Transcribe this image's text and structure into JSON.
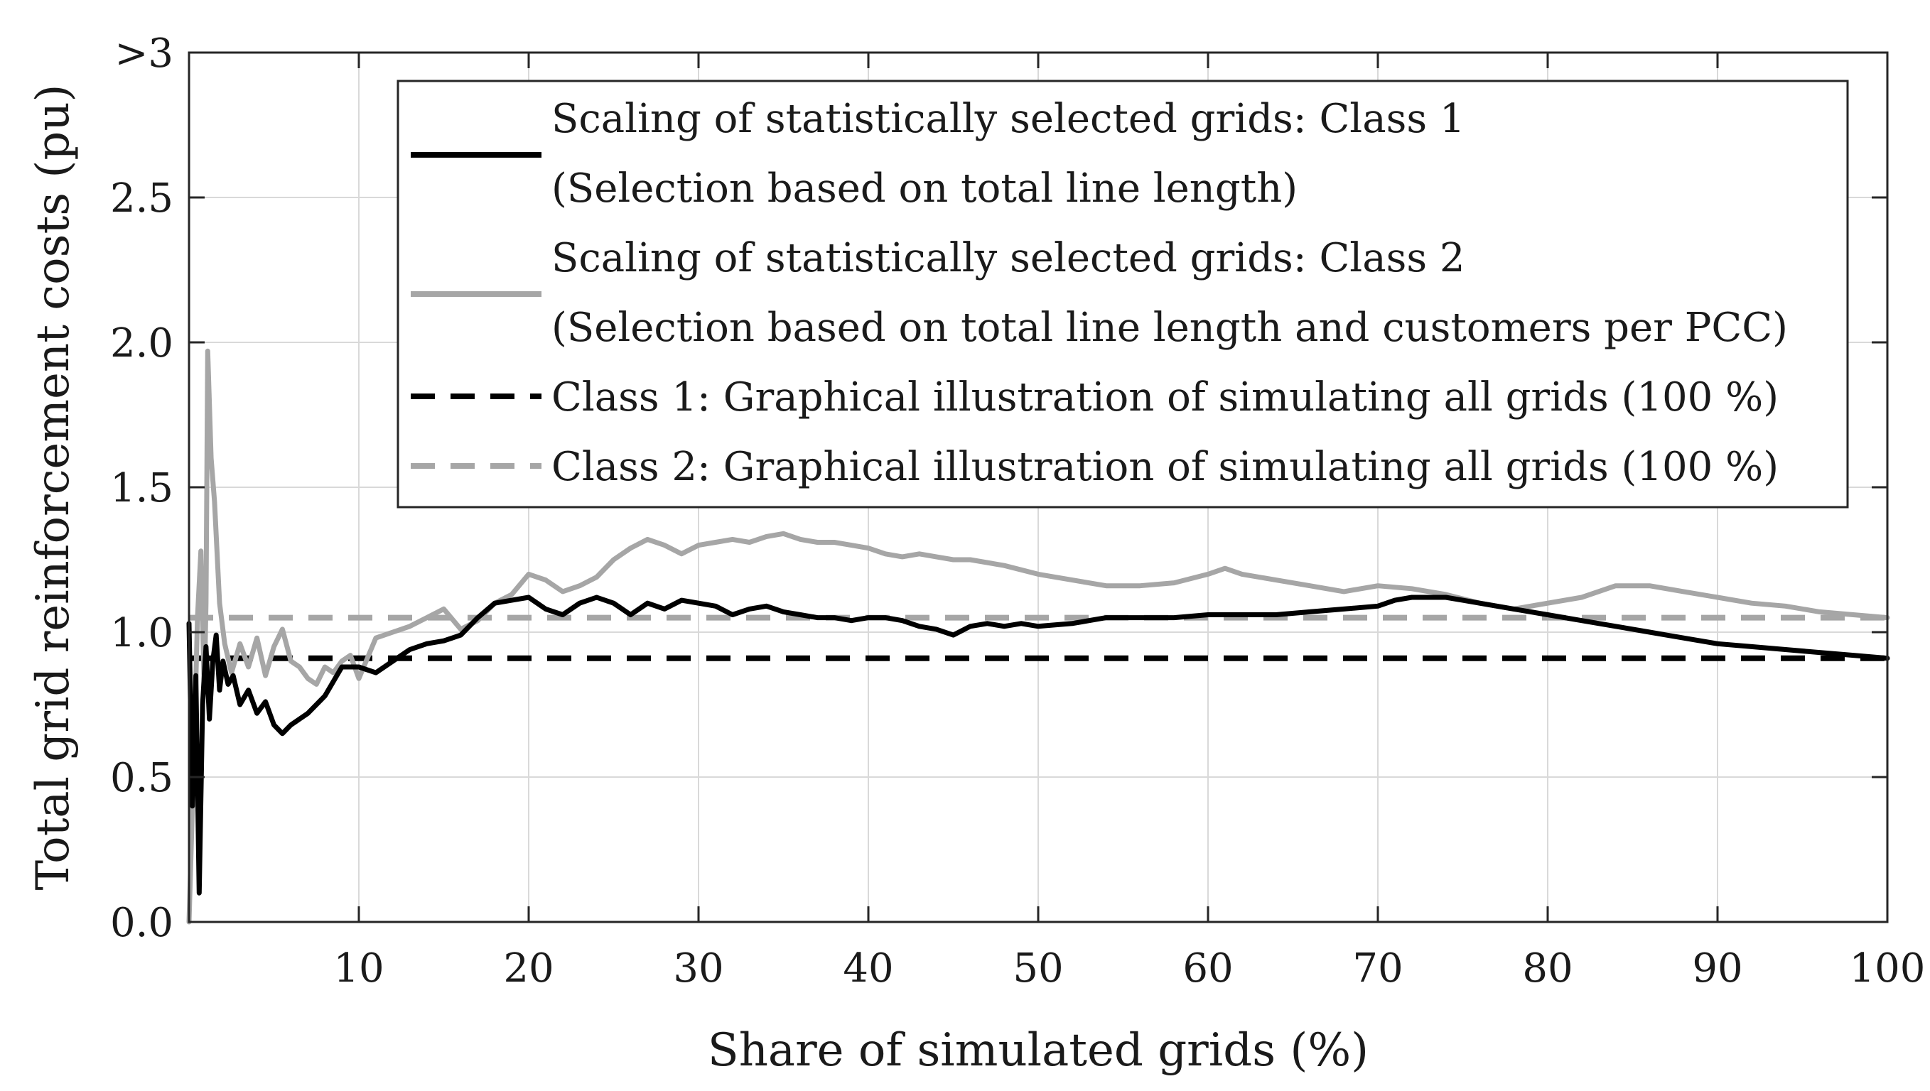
{
  "chart_data": {
    "type": "line",
    "xlabel": "Share of simulated grids (%)",
    "ylabel": "Total grid reinforcement costs (pu)",
    "xlim": [
      0,
      100
    ],
    "ylim": [
      0,
      3
    ],
    "x_ticks": [
      10,
      20,
      30,
      40,
      50,
      60,
      70,
      80,
      90,
      100
    ],
    "x_tick_labels": [
      "10",
      "20",
      "30",
      "40",
      "50",
      "60",
      "70",
      "80",
      "90",
      "100"
    ],
    "y_ticks": [
      0,
      0.5,
      1.0,
      1.5,
      2.0,
      2.5,
      3
    ],
    "y_tick_labels": [
      "0.0",
      "0.5",
      "1.0",
      "1.5",
      "2.0",
      "2.5",
      ">3"
    ],
    "grid": true,
    "legend_position": "top-right",
    "colors": {
      "class1": "#000000",
      "class2": "#a6a6a6",
      "grid": "#d9d9d9"
    },
    "series": [
      {
        "name": "Scaling of statistically selected grids: Class 1",
        "name_line2": "(Selection based on total line length)",
        "style": "solid",
        "color": "#000000",
        "x": [
          0,
          0.2,
          0.4,
          0.6,
          0.8,
          1.0,
          1.2,
          1.4,
          1.6,
          1.8,
          2.0,
          2.3,
          2.6,
          3,
          3.5,
          4,
          4.5,
          5,
          5.5,
          6,
          6.5,
          7,
          8,
          9,
          10,
          11,
          12,
          13,
          14,
          15,
          16,
          17,
          18,
          19,
          20,
          21,
          22,
          23,
          24,
          25,
          26,
          27,
          28,
          29,
          30,
          31,
          32,
          33,
          34,
          35,
          36,
          37,
          38,
          39,
          40,
          41,
          42,
          43,
          44,
          45,
          46,
          47,
          48,
          49,
          50,
          52,
          54,
          56,
          58,
          60,
          62,
          64,
          66,
          68,
          70,
          71,
          72,
          73,
          74,
          75,
          76,
          78,
          80,
          82,
          84,
          86,
          88,
          90,
          92,
          94,
          96,
          98,
          100
        ],
        "y": [
          1.03,
          0.4,
          0.85,
          0.1,
          0.75,
          0.95,
          0.7,
          0.9,
          0.99,
          0.8,
          0.9,
          0.82,
          0.85,
          0.75,
          0.8,
          0.72,
          0.76,
          0.68,
          0.65,
          0.68,
          0.7,
          0.72,
          0.78,
          0.88,
          0.88,
          0.86,
          0.9,
          0.94,
          0.96,
          0.97,
          0.99,
          1.05,
          1.1,
          1.11,
          1.12,
          1.08,
          1.06,
          1.1,
          1.12,
          1.1,
          1.06,
          1.1,
          1.08,
          1.11,
          1.1,
          1.09,
          1.06,
          1.08,
          1.09,
          1.07,
          1.06,
          1.05,
          1.05,
          1.04,
          1.05,
          1.05,
          1.04,
          1.02,
          1.01,
          0.99,
          1.02,
          1.03,
          1.02,
          1.03,
          1.02,
          1.03,
          1.05,
          1.05,
          1.05,
          1.06,
          1.06,
          1.06,
          1.07,
          1.08,
          1.09,
          1.11,
          1.12,
          1.12,
          1.12,
          1.11,
          1.1,
          1.08,
          1.06,
          1.04,
          1.02,
          1.0,
          0.98,
          0.96,
          0.95,
          0.94,
          0.93,
          0.92,
          0.91
        ]
      },
      {
        "name": "Scaling of statistically selected grids: Class 2",
        "name_line2": "(Selection based on total line length and customers per PCC)",
        "style": "solid",
        "color": "#a6a6a6",
        "x": [
          0,
          0.3,
          0.5,
          0.7,
          0.9,
          1.0,
          1.1,
          1.3,
          1.5,
          1.8,
          2.1,
          2.5,
          3,
          3.5,
          4,
          4.5,
          5,
          5.5,
          6,
          6.5,
          7,
          7.5,
          8,
          8.5,
          9,
          9.5,
          10,
          11,
          12,
          13,
          14,
          15,
          16,
          17,
          18,
          19,
          20,
          21,
          22,
          23,
          24,
          25,
          26,
          27,
          28,
          29,
          30,
          31,
          32,
          33,
          34,
          35,
          36,
          37,
          38,
          39,
          40,
          41,
          42,
          43,
          44,
          45,
          46,
          48,
          50,
          52,
          54,
          56,
          58,
          60,
          61,
          62,
          64,
          66,
          68,
          70,
          72,
          74,
          76,
          78,
          80,
          82,
          84,
          86,
          88,
          90,
          92,
          94,
          96,
          98,
          100
        ],
        "y": [
          0.0,
          0.6,
          1.05,
          1.28,
          0.8,
          1.1,
          1.97,
          1.6,
          1.45,
          1.1,
          0.96,
          0.86,
          0.96,
          0.88,
          0.98,
          0.85,
          0.95,
          1.01,
          0.9,
          0.88,
          0.84,
          0.82,
          0.88,
          0.86,
          0.9,
          0.92,
          0.84,
          0.98,
          1.0,
          1.02,
          1.05,
          1.08,
          1.01,
          1.04,
          1.1,
          1.13,
          1.2,
          1.18,
          1.14,
          1.16,
          1.19,
          1.25,
          1.29,
          1.32,
          1.3,
          1.27,
          1.3,
          1.31,
          1.32,
          1.31,
          1.33,
          1.34,
          1.32,
          1.31,
          1.31,
          1.3,
          1.29,
          1.27,
          1.26,
          1.27,
          1.26,
          1.25,
          1.25,
          1.23,
          1.2,
          1.18,
          1.16,
          1.16,
          1.17,
          1.2,
          1.22,
          1.2,
          1.18,
          1.16,
          1.14,
          1.16,
          1.15,
          1.13,
          1.1,
          1.08,
          1.1,
          1.12,
          1.16,
          1.16,
          1.14,
          1.12,
          1.1,
          1.09,
          1.07,
          1.06,
          1.05
        ]
      },
      {
        "name": "Class 1: Graphical illustration of simulating all grids (100 %)",
        "style": "dashed",
        "color": "#000000",
        "constant": 0.91
      },
      {
        "name": "Class 2: Graphical illustration of simulating all grids (100 %)",
        "style": "dashed",
        "color": "#a6a6a6",
        "constant": 1.05
      }
    ]
  }
}
